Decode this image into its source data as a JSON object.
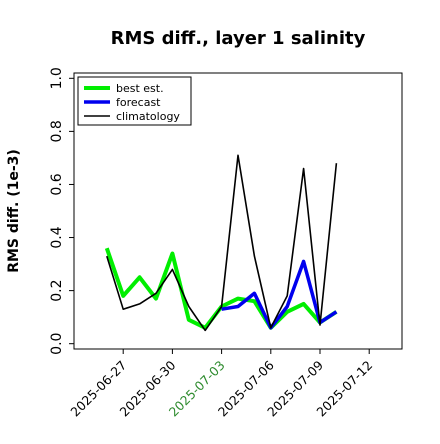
{
  "chart_data": {
    "type": "line",
    "title": "RMS diff., layer 1 salinity",
    "xlabel": "",
    "ylabel": "RMS diff. (1e-3)",
    "ylim": [
      -0.02,
      1.02
    ],
    "xlim": [
      "2025-06-24",
      "2025-07-14"
    ],
    "grid": false,
    "legend_position": "upper-left",
    "y_ticks": [
      0.0,
      0.2,
      0.4,
      0.6,
      0.8,
      1.0
    ],
    "y_tick_labels": [
      "0.0",
      "0.2",
      "0.4",
      "0.6",
      "0.8",
      "1.0"
    ],
    "x_ticks": [
      "2025-06-27",
      "2025-06-30",
      "2025-07-03",
      "2025-07-06",
      "2025-07-09",
      "2025-07-12"
    ],
    "x_tick_labels": [
      "2025-06-27",
      "2025-06-30",
      "2025-07-03",
      "2025-07-06",
      "2025-07-09",
      "2025-07-12"
    ],
    "highlighted_x_tick": "2025-07-03",
    "highlight_color": "#2e8b2e",
    "series": [
      {
        "name": "best est.",
        "color": "#00ee00",
        "width": 4,
        "x": [
          "2025-06-26",
          "2025-06-27",
          "2025-06-28",
          "2025-06-29",
          "2025-06-30",
          "2025-07-01",
          "2025-07-02",
          "2025-07-03",
          "2025-07-04",
          "2025-07-05",
          "2025-07-06",
          "2025-07-07",
          "2025-07-08",
          "2025-07-09",
          "2025-07-10"
        ],
        "values": [
          0.36,
          0.18,
          0.25,
          0.17,
          0.34,
          0.09,
          0.06,
          0.14,
          0.17,
          0.16,
          0.06,
          0.12,
          0.15,
          0.08,
          0.12
        ]
      },
      {
        "name": "forecast",
        "color": "#0000ee",
        "width": 3.5,
        "x": [
          "2025-07-03",
          "2025-07-04",
          "2025-07-05",
          "2025-07-06",
          "2025-07-07",
          "2025-07-08",
          "2025-07-09",
          "2025-07-10"
        ],
        "values": [
          0.13,
          0.14,
          0.19,
          0.06,
          0.14,
          0.31,
          0.08,
          0.12
        ]
      },
      {
        "name": "climatology",
        "color": "#000000",
        "width": 1.6,
        "x": [
          "2025-06-26",
          "2025-06-27",
          "2025-06-28",
          "2025-06-29",
          "2025-06-30",
          "2025-07-01",
          "2025-07-02",
          "2025-07-03",
          "2025-07-04",
          "2025-07-05",
          "2025-07-06",
          "2025-07-07",
          "2025-07-08",
          "2025-07-09",
          "2025-07-10"
        ],
        "values": [
          0.33,
          0.13,
          0.15,
          0.19,
          0.28,
          0.14,
          0.05,
          0.14,
          0.71,
          0.33,
          0.06,
          0.18,
          0.66,
          0.07,
          0.68
        ]
      }
    ]
  }
}
